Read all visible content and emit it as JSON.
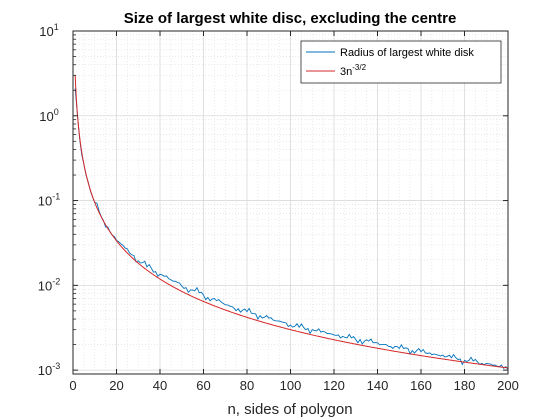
{
  "chart_data": {
    "type": "line",
    "title": "Size of largest white disc, excluding the centre",
    "xlabel": "n, sides of polygon",
    "ylabel": "",
    "xlim": [
      0,
      200
    ],
    "ylim": [
      0.0009,
      10
    ],
    "yscale": "log",
    "grid": true,
    "minor_grid": true,
    "legend_placement": "top-right",
    "x_ticks": [
      0,
      20,
      40,
      60,
      80,
      100,
      120,
      140,
      160,
      180,
      200
    ],
    "y_ticks": [
      {
        "value": 0.001,
        "base": "10",
        "exp": "-3"
      },
      {
        "value": 0.01,
        "base": "10",
        "exp": "-2"
      },
      {
        "value": 0.1,
        "base": "10",
        "exp": "-1"
      },
      {
        "value": 1,
        "base": "10",
        "exp": "0"
      },
      {
        "value": 10,
        "base": "10",
        "exp": "1"
      }
    ],
    "series": [
      {
        "name": "Radius of largest white disk",
        "color": "#0072BD",
        "x": [
          1,
          2,
          3,
          4,
          5,
          6,
          7,
          8,
          9,
          10,
          12,
          14,
          16,
          18,
          20,
          22,
          24,
          26,
          28,
          30,
          32,
          34,
          36,
          38,
          40,
          42,
          44,
          46,
          48,
          50,
          52,
          54,
          56,
          58,
          60,
          62,
          64,
          66,
          68,
          70,
          72,
          74,
          76,
          78,
          80,
          82,
          84,
          86,
          88,
          90,
          92,
          94,
          96,
          98,
          100,
          102,
          104,
          106,
          108,
          110,
          112,
          114,
          116,
          118,
          120,
          122,
          124,
          126,
          128,
          130,
          132,
          134,
          136,
          138,
          140,
          142,
          144,
          146,
          148,
          150,
          152,
          154,
          156,
          158,
          160,
          162,
          164,
          166,
          168,
          170,
          172,
          174,
          176,
          178,
          180,
          182,
          184,
          186,
          188,
          190,
          192,
          194,
          196,
          198,
          200
        ],
        "y": [
          2.1,
          1.05,
          0.55,
          0.35,
          0.27,
          0.2,
          0.165,
          0.13,
          0.11,
          0.095,
          0.075,
          0.058,
          0.049,
          0.039,
          0.034,
          0.031,
          0.0275,
          0.024,
          0.0225,
          0.0195,
          0.0185,
          0.0165,
          0.016,
          0.0145,
          0.0135,
          0.0128,
          0.012,
          0.0112,
          0.0108,
          0.0098,
          0.0094,
          0.0088,
          0.0086,
          0.0082,
          0.0077,
          0.0072,
          0.0069,
          0.0066,
          0.0064,
          0.0059,
          0.0057,
          0.0054,
          0.0053,
          0.0051,
          0.0049,
          0.0047,
          0.0046,
          0.0044,
          0.0042,
          0.0041,
          0.0039,
          0.0038,
          0.0037,
          0.0036,
          0.0034,
          0.0033,
          0.0032,
          0.0032,
          0.0031,
          0.003,
          0.0029,
          0.0028,
          0.0028,
          0.0027,
          0.0026,
          0.0026,
          0.0025,
          0.0024,
          0.0024,
          0.0023,
          0.0023,
          0.0022,
          0.0022,
          0.0021,
          0.0021,
          0.002,
          0.002,
          0.0019,
          0.0019,
          0.0018,
          0.0018,
          0.0018,
          0.0017,
          0.0017,
          0.00165,
          0.0016,
          0.0016,
          0.00155,
          0.0015,
          0.0015,
          0.00145,
          0.0014,
          0.0014,
          0.00135,
          0.0013,
          0.0013,
          0.00128,
          0.00125,
          0.0012,
          0.0012,
          0.00118,
          0.00115,
          0.0011,
          0.00105,
          0.00102
        ]
      },
      {
        "name": "3n",
        "name_sup": "-3/2",
        "color": "#D62728",
        "formula_coef": 3,
        "formula_exp": -1.5
      }
    ]
  }
}
